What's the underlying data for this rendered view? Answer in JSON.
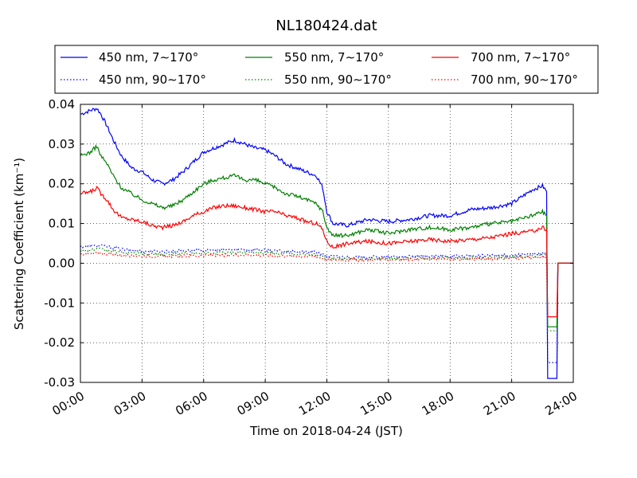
{
  "chart_data": {
    "type": "line",
    "title": "NL180424.dat",
    "xlabel": "Time on 2018-04-24 (JST)",
    "ylabel": "Scattering Coefficient (km⁻¹)",
    "x_unit": "hour",
    "xlim": [
      0,
      24
    ],
    "ylim": [
      -0.03,
      0.04
    ],
    "grid": true,
    "legend_position": "top",
    "x_ticks": [
      "00:00",
      "03:00",
      "06:00",
      "09:00",
      "12:00",
      "15:00",
      "18:00",
      "21:00",
      "24:00"
    ],
    "y_ticks": [
      "0.04",
      "0.03",
      "0.02",
      "0.01",
      "0.00",
      "-0.01",
      "-0.02",
      "-0.03"
    ],
    "series": [
      {
        "name": "450 nm, 7∼170°",
        "color": "#0000ff",
        "style": "solid",
        "x": [
          0,
          0.5,
          0.8,
          1.0,
          1.3,
          1.6,
          2.0,
          2.5,
          3.0,
          3.5,
          4.0,
          4.5,
          5.0,
          5.5,
          6.0,
          6.5,
          7.0,
          7.5,
          8.0,
          8.5,
          9.0,
          9.5,
          10.0,
          10.5,
          11.0,
          11.5,
          11.8,
          12.0,
          12.3,
          13.0,
          14.0,
          15.0,
          16.0,
          17.0,
          18.0,
          19.0,
          20.0,
          21.0,
          22.0,
          22.5,
          22.7,
          22.75,
          23.2,
          23.25,
          24.0
        ],
        "y": [
          0.0375,
          0.0385,
          0.039,
          0.0375,
          0.0345,
          0.031,
          0.027,
          0.024,
          0.023,
          0.021,
          0.02,
          0.021,
          0.023,
          0.0255,
          0.028,
          0.029,
          0.03,
          0.031,
          0.03,
          0.029,
          0.0285,
          0.027,
          0.025,
          0.024,
          0.023,
          0.022,
          0.019,
          0.013,
          0.01,
          0.0095,
          0.011,
          0.0105,
          0.011,
          0.012,
          0.012,
          0.0135,
          0.014,
          0.015,
          0.0185,
          0.0195,
          0.018,
          -0.029,
          -0.029,
          0.0,
          0.0
        ]
      },
      {
        "name": "450 nm, 90∼170°",
        "color": "#0000ff",
        "style": "dotted",
        "x": [
          0,
          1.0,
          2.0,
          3.0,
          4.0,
          6.0,
          8.0,
          10.0,
          11.5,
          12.0,
          13.0,
          15.0,
          18.0,
          21.0,
          22.7,
          22.75,
          23.2,
          23.25,
          24.0
        ],
        "y": [
          0.0042,
          0.0045,
          0.0035,
          0.003,
          0.003,
          0.0032,
          0.0035,
          0.003,
          0.0028,
          0.0018,
          0.0015,
          0.0016,
          0.0018,
          0.002,
          0.0025,
          -0.025,
          -0.025,
          0.0,
          0.0
        ]
      },
      {
        "name": "550 nm, 7∼170°",
        "color": "#008000",
        "style": "solid",
        "x": [
          0,
          0.5,
          0.8,
          1.0,
          1.3,
          1.6,
          2.0,
          2.5,
          3.0,
          3.5,
          4.0,
          4.5,
          5.0,
          5.5,
          6.0,
          6.5,
          7.0,
          7.5,
          8.0,
          8.5,
          9.0,
          9.5,
          10.0,
          10.5,
          11.0,
          11.5,
          11.8,
          12.0,
          12.3,
          13.0,
          14.0,
          15.0,
          16.0,
          17.0,
          18.0,
          19.0,
          20.0,
          21.0,
          22.0,
          22.5,
          22.7,
          22.75,
          23.2,
          23.25,
          24.0
        ],
        "y": [
          0.027,
          0.028,
          0.0295,
          0.027,
          0.025,
          0.022,
          0.019,
          0.0175,
          0.016,
          0.015,
          0.014,
          0.0145,
          0.016,
          0.018,
          0.02,
          0.021,
          0.0215,
          0.022,
          0.021,
          0.021,
          0.02,
          0.019,
          0.0175,
          0.017,
          0.016,
          0.015,
          0.013,
          0.009,
          0.007,
          0.007,
          0.0085,
          0.0075,
          0.0085,
          0.009,
          0.0085,
          0.009,
          0.01,
          0.0105,
          0.012,
          0.013,
          0.012,
          -0.016,
          -0.016,
          0.0,
          0.0
        ]
      },
      {
        "name": "550 nm, 90∼170°",
        "color": "#008000",
        "style": "dotted",
        "x": [
          0,
          1.0,
          2.0,
          3.0,
          4.0,
          6.0,
          8.0,
          10.0,
          11.5,
          12.0,
          13.0,
          15.0,
          18.0,
          21.0,
          22.7,
          22.75,
          23.2,
          23.25,
          24.0
        ],
        "y": [
          0.0032,
          0.0035,
          0.0027,
          0.0024,
          0.0023,
          0.0025,
          0.0028,
          0.0024,
          0.0022,
          0.0013,
          0.0011,
          0.0012,
          0.0014,
          0.0016,
          0.002,
          -0.017,
          -0.017,
          0.0,
          0.0
        ]
      },
      {
        "name": "700 nm, 7∼170°",
        "color": "#ff0000",
        "style": "solid",
        "x": [
          0,
          0.5,
          0.8,
          1.0,
          1.3,
          1.6,
          2.0,
          2.5,
          3.0,
          3.5,
          4.0,
          4.5,
          5.0,
          5.5,
          6.0,
          6.5,
          7.0,
          7.5,
          8.0,
          8.5,
          9.0,
          9.5,
          10.0,
          10.5,
          11.0,
          11.5,
          11.8,
          12.0,
          12.3,
          13.0,
          14.0,
          15.0,
          16.0,
          17.0,
          18.0,
          19.0,
          20.0,
          21.0,
          22.0,
          22.5,
          22.7,
          22.75,
          23.2,
          23.25,
          24.0
        ],
        "y": [
          0.0175,
          0.018,
          0.019,
          0.0175,
          0.016,
          0.0135,
          0.0115,
          0.011,
          0.0105,
          0.0095,
          0.009,
          0.0095,
          0.0105,
          0.012,
          0.013,
          0.014,
          0.0145,
          0.0145,
          0.014,
          0.0135,
          0.013,
          0.013,
          0.012,
          0.0115,
          0.0105,
          0.01,
          0.0085,
          0.0055,
          0.004,
          0.005,
          0.0055,
          0.005,
          0.0055,
          0.006,
          0.0055,
          0.006,
          0.0065,
          0.0075,
          0.008,
          0.009,
          0.0085,
          -0.0135,
          -0.0135,
          0.0,
          0.0
        ]
      },
      {
        "name": "700 nm, 90∼170°",
        "color": "#ff0000",
        "style": "dotted",
        "x": [
          0,
          1.0,
          2.0,
          3.0,
          4.0,
          6.0,
          8.0,
          10.0,
          11.5,
          12.0,
          13.0,
          15.0,
          18.0,
          21.0,
          22.7,
          22.75,
          23.2,
          23.25,
          24.0
        ],
        "y": [
          0.0023,
          0.0025,
          0.002,
          0.0018,
          0.0017,
          0.0019,
          0.0021,
          0.0018,
          0.0017,
          0.0009,
          0.0008,
          0.0009,
          0.001,
          0.0012,
          0.0015,
          -0.0135,
          -0.0135,
          0.0,
          0.0
        ]
      }
    ]
  }
}
